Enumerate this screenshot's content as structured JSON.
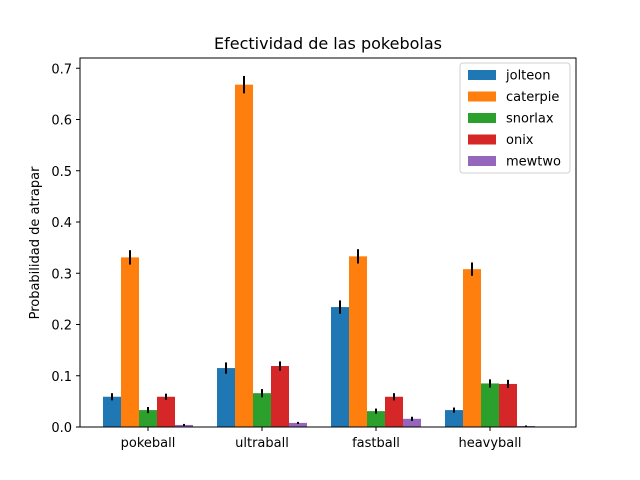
{
  "chart_data": {
    "type": "bar",
    "title": "Efectividad de las pokebolas",
    "xlabel": "",
    "ylabel": "Probabilidad de atrapar",
    "categories": [
      "pokeball",
      "ultraball",
      "fastball",
      "heavyball"
    ],
    "ylim": [
      0,
      0.72
    ],
    "yticks": [
      "0.0",
      "0.1",
      "0.2",
      "0.3",
      "0.4",
      "0.5",
      "0.6",
      "0.7"
    ],
    "grid": false,
    "legend_position": "top-right",
    "series": [
      {
        "name": "jolteon",
        "color": "#1f77b4",
        "values": [
          0.059,
          0.115,
          0.234,
          0.033
        ],
        "errors": [
          0.007,
          0.011,
          0.013,
          0.005
        ]
      },
      {
        "name": "caterpie",
        "color": "#ff7f0e",
        "values": [
          0.331,
          0.668,
          0.333,
          0.308
        ],
        "errors": [
          0.014,
          0.017,
          0.014,
          0.013
        ]
      },
      {
        "name": "snorlax",
        "color": "#2ca02c",
        "values": [
          0.033,
          0.066,
          0.031,
          0.085
        ],
        "errors": [
          0.006,
          0.008,
          0.005,
          0.008
        ]
      },
      {
        "name": "onix",
        "color": "#d62728",
        "values": [
          0.059,
          0.119,
          0.059,
          0.084
        ],
        "errors": [
          0.006,
          0.009,
          0.007,
          0.008
        ]
      },
      {
        "name": "mewtwo",
        "color": "#9467bd",
        "values": [
          0.004,
          0.008,
          0.016,
          0.002
        ],
        "errors": [
          0.002,
          0.002,
          0.004,
          0.001
        ]
      }
    ]
  }
}
